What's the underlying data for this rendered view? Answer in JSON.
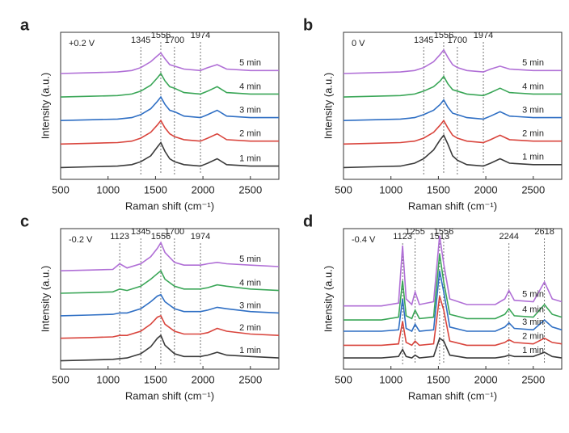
{
  "chart_data": [
    {
      "type": "line",
      "panel_label": "a",
      "annotation": "+0.2 V",
      "x_label": "Raman shift (cm⁻¹)",
      "y_label": "Intensity (a.u.)",
      "xlim": [
        500,
        2800
      ],
      "xticks": [
        500,
        1000,
        1500,
        2000,
        2500
      ],
      "ylim": [
        0,
        100
      ],
      "peaks": [
        1345,
        1556,
        1700,
        1974
      ],
      "x": [
        500,
        800,
        1100,
        1250,
        1345,
        1450,
        1520,
        1556,
        1600,
        1650,
        1700,
        1800,
        1974,
        2050,
        2150,
        2250,
        2500,
        2800
      ],
      "series": [
        {
          "name": "1 min",
          "color": "#3a3a3a",
          "values": [
            8,
            8.5,
            9,
            10,
            12,
            16,
            22,
            25,
            19,
            14,
            12,
            10,
            9,
            11,
            14,
            10,
            9,
            9
          ]
        },
        {
          "name": "2 min",
          "color": "#d9453d",
          "values": [
            24,
            24.5,
            25,
            26,
            28,
            32,
            37,
            40,
            35,
            31,
            29,
            27,
            26,
            28,
            31,
            27,
            26,
            26
          ]
        },
        {
          "name": "3 min",
          "color": "#2f6fc4",
          "values": [
            40,
            40.5,
            41,
            42,
            44,
            48,
            53,
            56,
            51,
            47,
            46,
            43,
            42,
            44,
            47,
            43,
            42,
            42
          ]
        },
        {
          "name": "4 min",
          "color": "#3aa657",
          "values": [
            56,
            56.5,
            57,
            58,
            60,
            64,
            69,
            72,
            67,
            63,
            62,
            59,
            58,
            60,
            63,
            59,
            58,
            58
          ]
        },
        {
          "name": "5 min",
          "color": "#b06fd6",
          "values": [
            72,
            72.5,
            73,
            74,
            76,
            80,
            84,
            86,
            82,
            78,
            77,
            75,
            74,
            76,
            78,
            75,
            74,
            74
          ]
        }
      ]
    },
    {
      "type": "line",
      "panel_label": "b",
      "annotation": "0 V",
      "x_label": "Raman shift (cm⁻¹)",
      "y_label": "Intensity (a.u.)",
      "xlim": [
        500,
        2800
      ],
      "xticks": [
        500,
        1000,
        1500,
        2000,
        2500
      ],
      "ylim": [
        0,
        100
      ],
      "peaks": [
        1345,
        1556,
        1700,
        1974
      ],
      "x": [
        500,
        800,
        1100,
        1250,
        1345,
        1450,
        1520,
        1556,
        1600,
        1650,
        1700,
        1800,
        1974,
        2050,
        2150,
        2250,
        2500,
        2800
      ],
      "series": [
        {
          "name": "1 min",
          "color": "#3a3a3a",
          "values": [
            8,
            8.5,
            9,
            11,
            14,
            20,
            27,
            30,
            24,
            16,
            13,
            10,
            9,
            11,
            14,
            11,
            10,
            10
          ]
        },
        {
          "name": "2 min",
          "color": "#d9453d",
          "values": [
            24,
            24.5,
            25,
            26,
            28,
            32,
            37,
            40,
            35,
            30,
            28,
            26,
            25,
            27,
            30,
            27,
            26,
            26
          ]
        },
        {
          "name": "3 min",
          "color": "#2f6fc4",
          "values": [
            40,
            40.5,
            41,
            42,
            44,
            47,
            51,
            54,
            49,
            45,
            44,
            42,
            41,
            43,
            46,
            43,
            42,
            42
          ]
        },
        {
          "name": "4 min",
          "color": "#3aa657",
          "values": [
            56,
            56.5,
            57,
            58,
            60,
            63,
            67,
            70,
            65,
            61,
            60,
            58,
            57,
            59,
            62,
            59,
            58,
            58
          ]
        },
        {
          "name": "5 min",
          "color": "#b06fd6",
          "values": [
            72,
            72.5,
            73,
            74,
            76,
            80,
            85,
            88,
            83,
            78,
            76,
            74,
            73,
            75,
            77,
            75,
            74,
            74
          ]
        }
      ]
    },
    {
      "type": "line",
      "panel_label": "c",
      "annotation": "-0.2 V",
      "x_label": "Raman shift (cm⁻¹)",
      "y_label": "Intensity (a.u.)",
      "xlim": [
        500,
        2800
      ],
      "xticks": [
        500,
        1000,
        1500,
        2000,
        2500
      ],
      "ylim": [
        0,
        100
      ],
      "peaks": [
        1123,
        1345,
        1556,
        1700,
        1974
      ],
      "x": [
        500,
        800,
        1050,
        1123,
        1200,
        1345,
        1450,
        1520,
        1556,
        1600,
        1700,
        1800,
        1974,
        2050,
        2150,
        2250,
        2500,
        2800
      ],
      "series": [
        {
          "name": "1 min",
          "color": "#3a3a3a",
          "values": [
            6,
            6.5,
            7,
            7.5,
            8,
            11,
            16,
            22,
            24,
            17,
            11,
            9,
            9,
            10,
            12,
            10,
            9,
            8
          ]
        },
        {
          "name": "2 min",
          "color": "#d9453d",
          "values": [
            22,
            22.5,
            23,
            24,
            24,
            27,
            32,
            37,
            38,
            32,
            27,
            25,
            25,
            26,
            29,
            27,
            25,
            24
          ]
        },
        {
          "name": "3 min",
          "color": "#2f6fc4",
          "values": [
            38,
            38.5,
            39,
            40,
            40,
            43,
            48,
            52,
            53,
            48,
            43,
            41,
            41,
            42,
            44,
            43,
            41,
            40
          ]
        },
        {
          "name": "4 min",
          "color": "#3aa657",
          "values": [
            54,
            54.5,
            55,
            57,
            56,
            59,
            64,
            68,
            70,
            64,
            59,
            57,
            57,
            58,
            60,
            59,
            57,
            56
          ]
        },
        {
          "name": "5 min",
          "color": "#b06fd6",
          "values": [
            70,
            70.5,
            71,
            75,
            72,
            75,
            80,
            86,
            90,
            83,
            76,
            74,
            74,
            75,
            76,
            75,
            74,
            73
          ]
        }
      ]
    },
    {
      "type": "line",
      "panel_label": "d",
      "annotation": "-0.4 V",
      "x_label": "Raman shift (cm⁻¹)",
      "y_label": "Intensity (a.u.)",
      "xlim": [
        500,
        2800
      ],
      "xticks": [
        500,
        1000,
        1500,
        2000,
        2500
      ],
      "ylim": [
        0,
        100
      ],
      "peaks": [
        1123,
        1255,
        1513,
        1556,
        2244,
        2618
      ],
      "x": [
        500,
        900,
        1080,
        1123,
        1160,
        1220,
        1255,
        1300,
        1450,
        1513,
        1556,
        1620,
        1800,
        2100,
        2200,
        2244,
        2300,
        2500,
        2618,
        2700,
        2800
      ],
      "series": [
        {
          "name": "1 min",
          "color": "#3a3a3a",
          "values": [
            8,
            8,
            9,
            14,
            9,
            8,
            10,
            8,
            9,
            22,
            20,
            10,
            8,
            8,
            9,
            10,
            9,
            9,
            12,
            9,
            8
          ]
        },
        {
          "name": "2 min",
          "color": "#d9453d",
          "values": [
            17,
            17,
            18,
            34,
            19,
            17,
            20,
            17,
            18,
            52,
            42,
            20,
            17,
            17,
            19,
            21,
            19,
            18,
            22,
            19,
            18
          ]
        },
        {
          "name": "3 min",
          "color": "#2f6fc4",
          "values": [
            27,
            27,
            28,
            50,
            29,
            27,
            32,
            27,
            28,
            70,
            55,
            30,
            27,
            27,
            30,
            33,
            29,
            28,
            35,
            30,
            28
          ]
        },
        {
          "name": "4 min",
          "color": "#3aa657",
          "values": [
            35,
            35,
            37,
            63,
            38,
            36,
            42,
            36,
            37,
            82,
            62,
            39,
            36,
            36,
            39,
            43,
            38,
            37,
            46,
            39,
            37
          ]
        },
        {
          "name": "5 min",
          "color": "#b06fd6",
          "values": [
            45,
            45,
            47,
            88,
            50,
            46,
            55,
            46,
            48,
            95,
            75,
            50,
            46,
            46,
            50,
            56,
            49,
            48,
            62,
            50,
            48
          ]
        }
      ]
    }
  ]
}
